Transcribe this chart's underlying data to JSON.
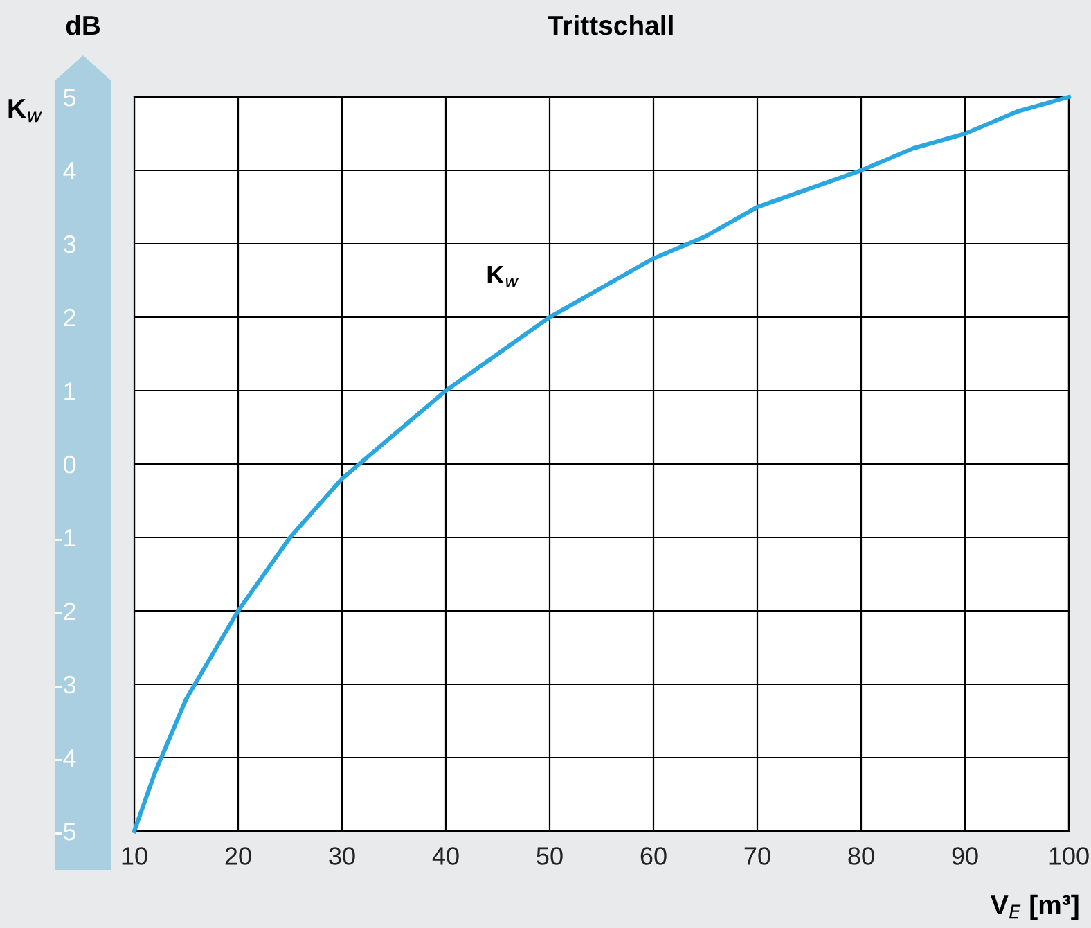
{
  "chart_data": {
    "type": "line",
    "title": "Trittschall",
    "xlabel": "V$_{E}$ [m³]",
    "ylabel": "K$_{w}$",
    "annotations": [
      "dB"
    ],
    "series": [
      {
        "name": "K$_{w}$",
        "color": "#2aa7df",
        "x": [
          10,
          12,
          15,
          20,
          25,
          30,
          35,
          40,
          45,
          50,
          55,
          60,
          65,
          70,
          75,
          80,
          85,
          90,
          95,
          100
        ],
        "values": [
          -5,
          -4.2,
          -3.2,
          -2,
          -1,
          -0.2,
          0.4,
          1,
          1.5,
          2,
          2.4,
          2.8,
          3.1,
          3.5,
          3.75,
          4,
          4.3,
          4.5,
          4.8,
          5
        ]
      }
    ],
    "xlim": [
      10,
      100
    ],
    "xticks": [
      10,
      20,
      30,
      40,
      50,
      60,
      70,
      80,
      90,
      100
    ],
    "ylim": [
      -5,
      5
    ],
    "yticks": [
      -5,
      -4,
      -3,
      -2,
      -1,
      0,
      1,
      2,
      3,
      4,
      5
    ],
    "grid": true,
    "legend": false,
    "marker": "none",
    "line_style": "solid"
  }
}
